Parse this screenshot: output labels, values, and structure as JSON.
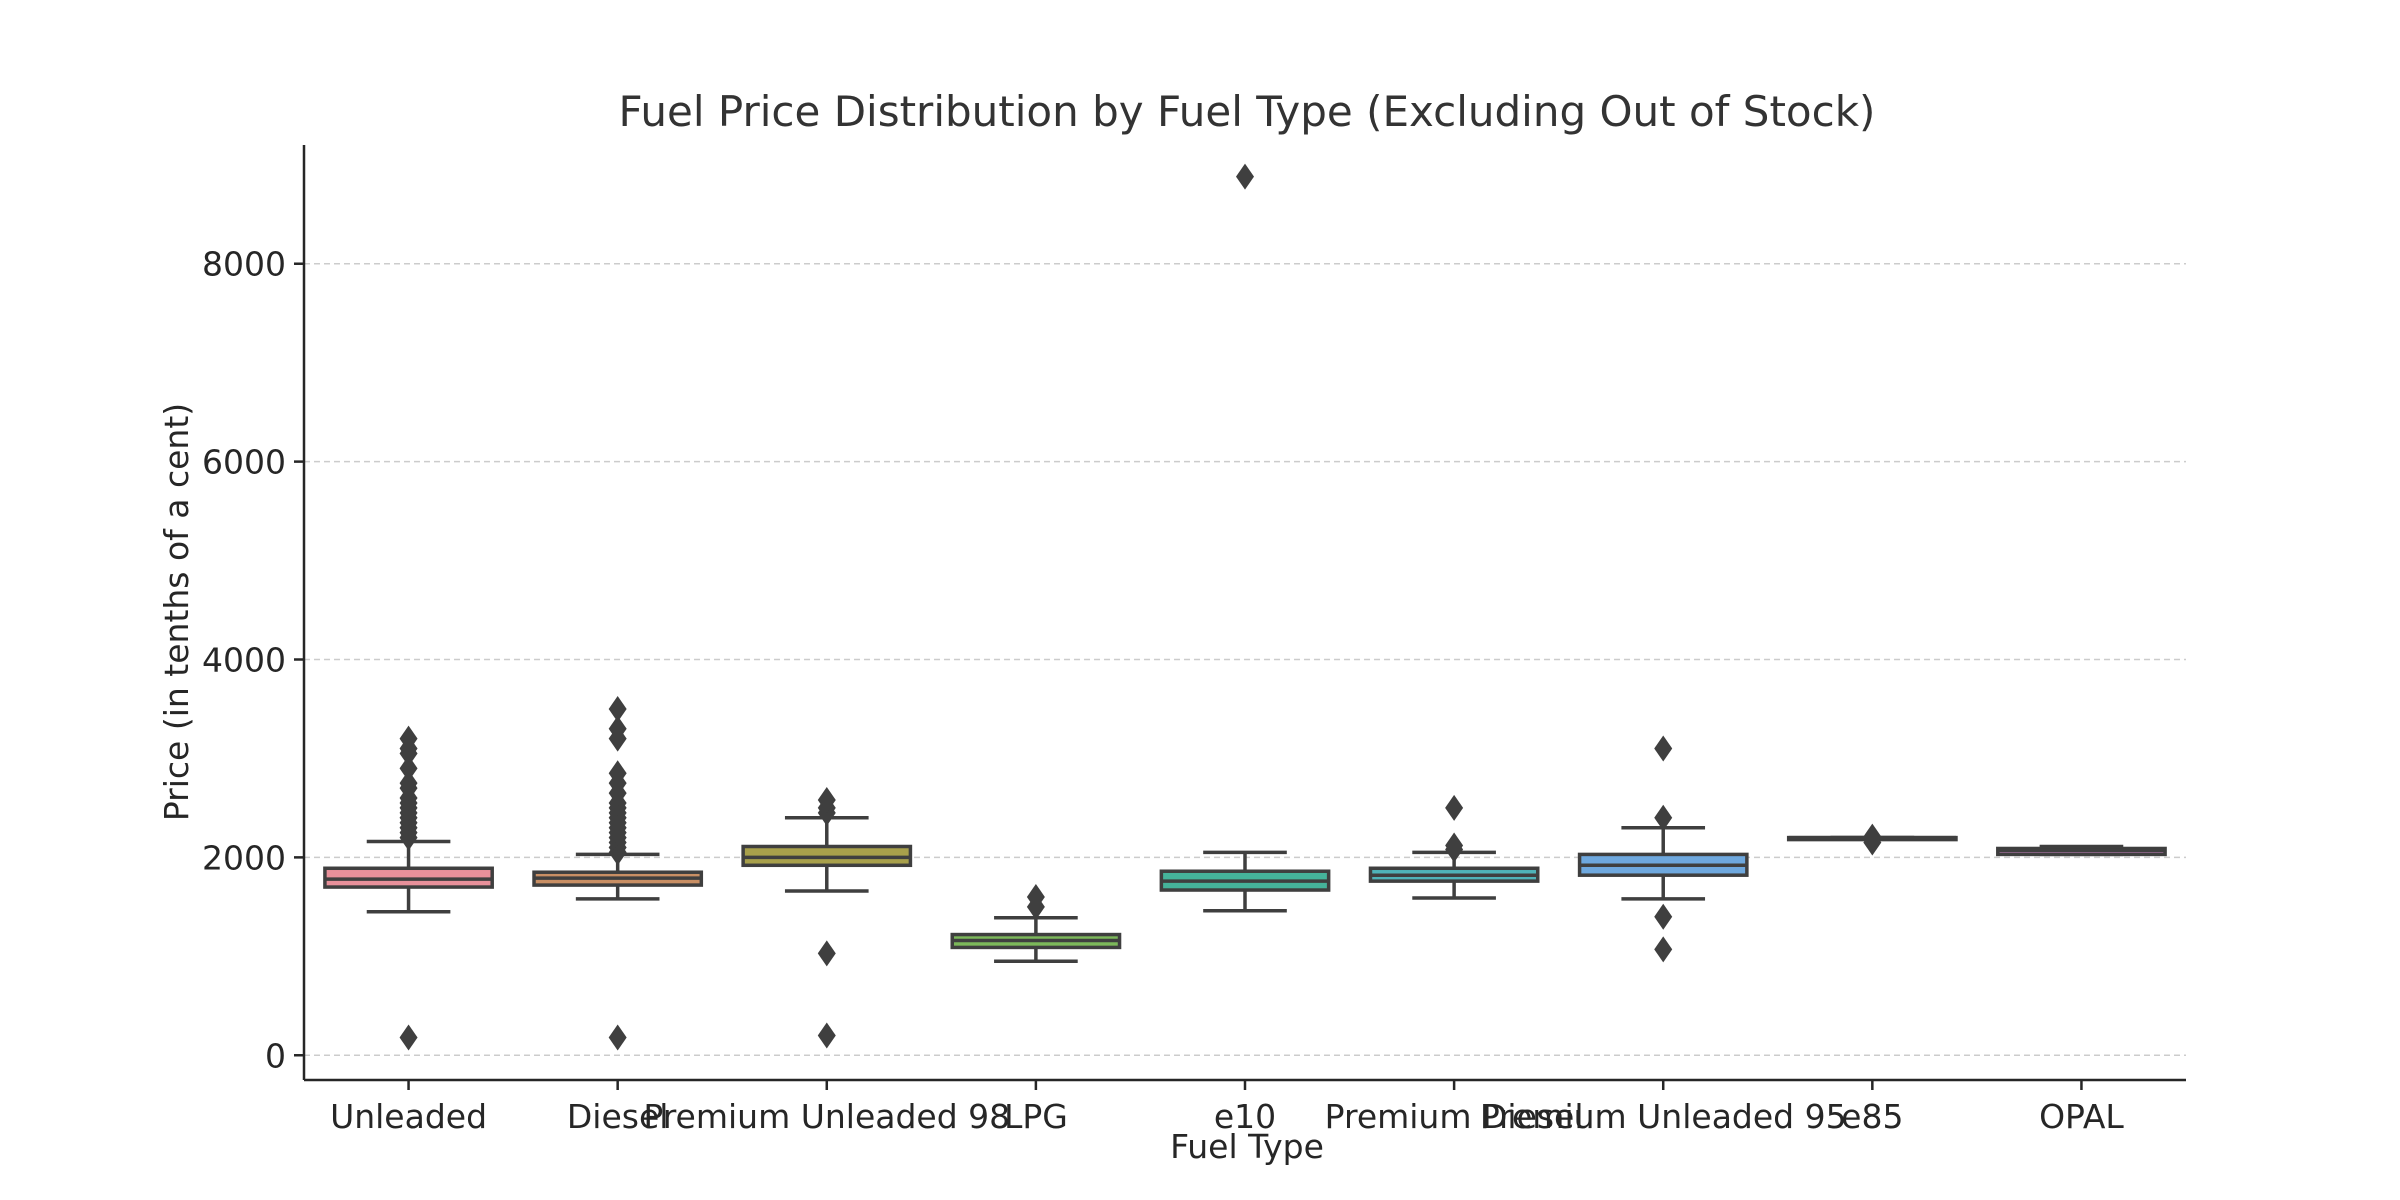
{
  "chart_data": {
    "type": "box",
    "title": "Fuel Price Distribution by Fuel Type (Excluding Out of Stock)",
    "xlabel": "Fuel Type",
    "ylabel": "Price (in tenths of a cent)",
    "ylim": [
      -250,
      9200
    ],
    "yticks": [
      0,
      2000,
      4000,
      6000,
      8000
    ],
    "grid": "horizontal dashed",
    "categories": [
      "Unleaded",
      "Diesel",
      "Premium Unleaded 98",
      "LPG",
      "e10",
      "Premium Diesel",
      "Premium Unleaded 95",
      "e85",
      "OPAL"
    ],
    "colors": [
      "#e8909a",
      "#c98f64",
      "#a8a04b",
      "#7cb85a",
      "#45b39a",
      "#4fb3b8",
      "#6ea8de",
      "#b39ee0",
      "#e08fd6"
    ],
    "boxes": [
      {
        "whisker_low": 1450,
        "q1": 1700,
        "median": 1780,
        "q3": 1890,
        "whisker_high": 2160,
        "outliers": [
          180,
          2200,
          2250,
          2300,
          2350,
          2400,
          2450,
          2500,
          2550,
          2600,
          2700,
          2750,
          2900,
          3050,
          3100,
          3200
        ]
      },
      {
        "whisker_low": 1580,
        "q1": 1720,
        "median": 1790,
        "q3": 1850,
        "whisker_high": 2030,
        "outliers": [
          180,
          2050,
          2100,
          2150,
          2200,
          2250,
          2300,
          2350,
          2400,
          2450,
          2500,
          2550,
          2650,
          2750,
          2850,
          3200,
          3300,
          3500
        ]
      },
      {
        "whisker_low": 1660,
        "q1": 1920,
        "median": 2000,
        "q3": 2110,
        "whisker_high": 2400,
        "outliers": [
          200,
          1030,
          2450,
          2500,
          2580
        ]
      },
      {
        "whisker_low": 950,
        "q1": 1090,
        "median": 1160,
        "q3": 1220,
        "whisker_high": 1390,
        "outliers": [
          1500,
          1600
        ]
      },
      {
        "whisker_low": 1460,
        "q1": 1670,
        "median": 1760,
        "q3": 1860,
        "whisker_high": 2050,
        "outliers": [
          8880
        ]
      },
      {
        "whisker_low": 1590,
        "q1": 1760,
        "median": 1820,
        "q3": 1890,
        "whisker_high": 2050,
        "outliers": [
          2080,
          2120,
          2500
        ]
      },
      {
        "whisker_low": 1580,
        "q1": 1820,
        "median": 1920,
        "q3": 2030,
        "whisker_high": 2300,
        "outliers": [
          1070,
          1400,
          2400,
          3100
        ]
      },
      {
        "whisker_low": 2200,
        "q1": 2200,
        "median": 2200,
        "q3": 2200,
        "whisker_high": 2200,
        "outliers": [
          2150,
          2210
        ]
      },
      {
        "whisker_low": 2030,
        "q1": 2030,
        "median": 2070,
        "q3": 2090,
        "whisker_high": 2110,
        "outliers": []
      }
    ]
  }
}
